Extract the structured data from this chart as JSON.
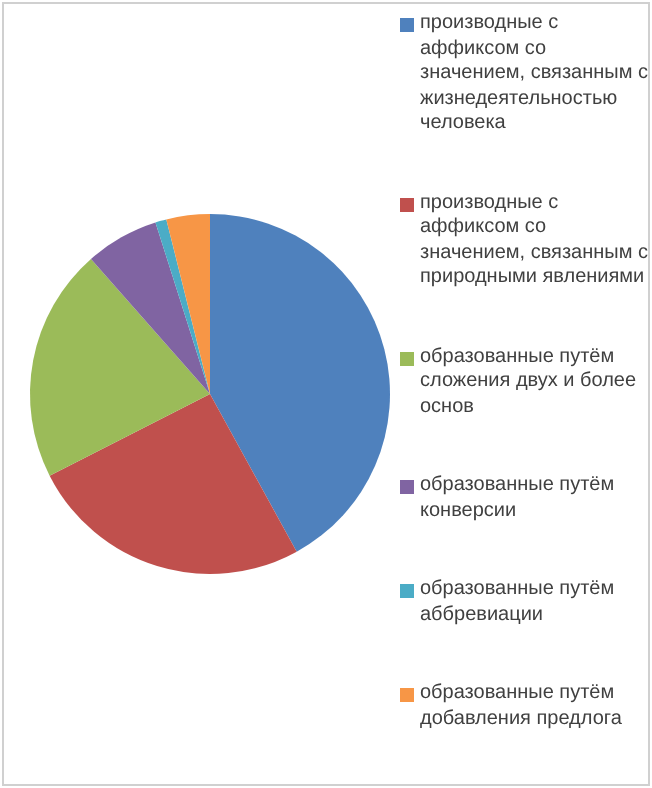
{
  "chart_data": {
    "type": "pie",
    "categories": [
      "производные с аффиксом со значением, связанным с жизнедеятельностью человека",
      "производные с аффиксом со значением, связанным с природными явлениями",
      "образованные путём сложения двух и более основ",
      "образованные путём конверсии",
      "образованные путём аббревиации",
      "образованные путём добавления предлога"
    ],
    "values": [
      42,
      25.5,
      21,
      6.6,
      1,
      3.9
    ],
    "colors": [
      "#4f81bd",
      "#c0504d",
      "#9bbb59",
      "#8064a2",
      "#4bacc6",
      "#f79646"
    ],
    "legend": "right"
  }
}
